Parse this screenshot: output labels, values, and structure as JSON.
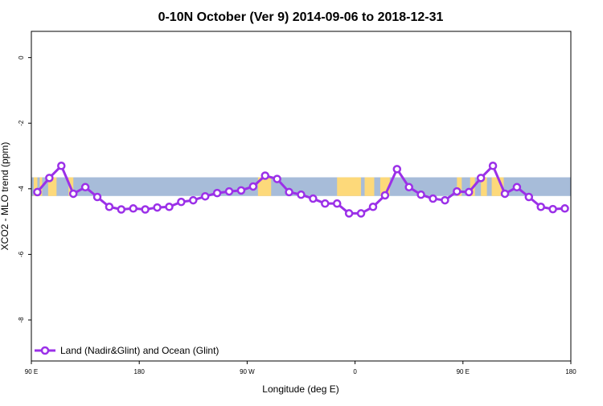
{
  "chart_data": {
    "type": "line",
    "title": "0-10N October (Ver 9)   2014-09-06 to 2018-12-31",
    "xlabel": "Longitude (deg E)",
    "ylabel": "XCO2 - MLO trend (ppm)",
    "xlim": [
      90,
      540
    ],
    "ylim": [
      -9.25,
      0.8
    ],
    "x_ticks": [
      {
        "value": 90,
        "label": "90 E"
      },
      {
        "value": 180,
        "label": "180"
      },
      {
        "value": 270,
        "label": "90 W"
      },
      {
        "value": 360,
        "label": "0"
      },
      {
        "value": 450,
        "label": "90 E"
      },
      {
        "value": 540,
        "label": "180"
      }
    ],
    "y_ticks": [
      {
        "value": 0,
        "label": "0"
      },
      {
        "value": -2,
        "label": "-2"
      },
      {
        "value": -4,
        "label": "-4"
      },
      {
        "value": -6,
        "label": "-6"
      },
      {
        "value": -8,
        "label": "-8"
      }
    ],
    "grid": false,
    "legend_position": "bottom-left",
    "band": {
      "y_top": -3.65,
      "y_bottom": -4.22,
      "ocean_color": "#a7bcd9",
      "land_color": "#fdd97a"
    },
    "land_segments": [
      [
        92,
        95
      ],
      [
        97,
        99
      ],
      [
        104,
        111
      ],
      [
        121,
        125
      ],
      [
        279,
        290
      ],
      [
        345,
        365
      ],
      [
        368,
        376
      ],
      [
        381,
        389
      ],
      [
        445,
        449
      ],
      [
        456,
        460
      ],
      [
        465,
        470
      ],
      [
        474,
        484
      ]
    ],
    "series": [
      {
        "name": "Land (Nadir&Glint) and Ocean (Glint)",
        "color": "#9b30e8",
        "x": [
          95,
          105,
          115,
          125,
          135,
          145,
          155,
          165,
          175,
          185,
          195,
          205,
          215,
          225,
          235,
          245,
          255,
          265,
          275,
          285,
          295,
          305,
          315,
          325,
          335,
          345,
          355,
          365,
          375,
          385,
          395,
          405,
          415,
          425,
          435,
          445,
          455,
          465,
          475,
          485,
          495,
          505,
          515,
          525,
          535
        ],
        "y": [
          -4.1,
          -3.67,
          -3.3,
          -4.15,
          -3.95,
          -4.25,
          -4.55,
          -4.63,
          -4.6,
          -4.63,
          -4.57,
          -4.55,
          -4.4,
          -4.35,
          -4.23,
          -4.13,
          -4.08,
          -4.05,
          -3.93,
          -3.6,
          -3.7,
          -4.1,
          -4.18,
          -4.3,
          -4.45,
          -4.45,
          -4.75,
          -4.75,
          -4.55,
          -4.2,
          -3.4,
          -3.95,
          -4.18,
          -4.3,
          -4.35,
          -4.08,
          -4.1,
          -3.67,
          -3.3,
          -4.15,
          -3.95,
          -4.25,
          -4.55,
          -4.62,
          -4.6
        ]
      }
    ]
  }
}
